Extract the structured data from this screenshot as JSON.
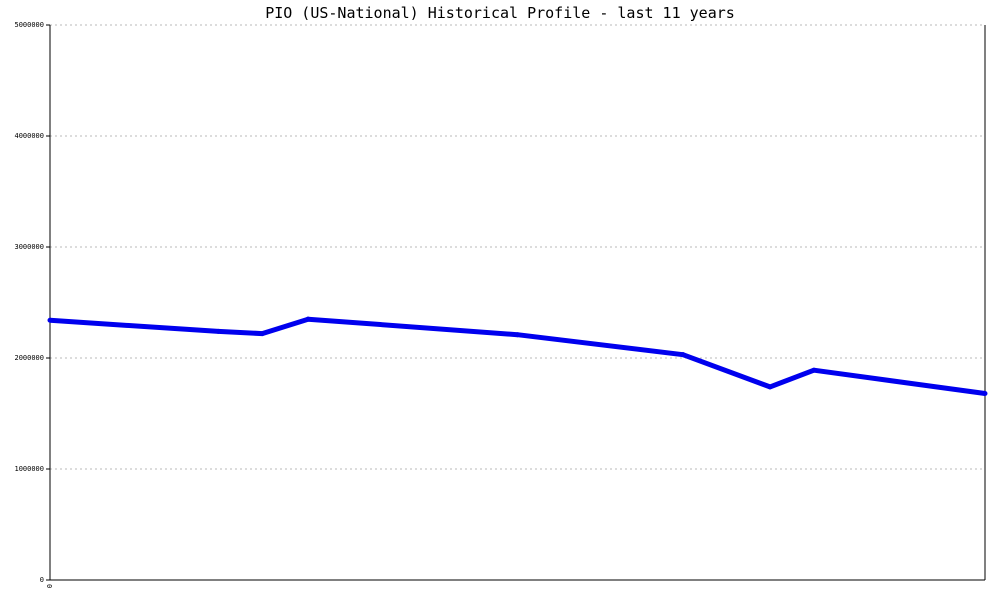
{
  "chart_data": {
    "type": "line",
    "title": "PIO (US-National) Historical Profile - last 11 years",
    "xlabel": "",
    "ylabel": "",
    "x_tick_labels": [
      "0"
    ],
    "y_ticks": [
      0,
      1000000,
      2000000,
      3000000,
      4000000,
      5000000
    ],
    "y_tick_labels": [
      "0",
      "1000000",
      "2000000",
      "3000000",
      "4000000",
      "5000000"
    ],
    "ylim": [
      0,
      5000000
    ],
    "xlim": [
      0,
      1
    ],
    "grid": true,
    "legend": "none",
    "series": [
      {
        "color": "#0000ee",
        "x": [
          0.0,
          0.18,
          0.227,
          0.276,
          0.5,
          0.677,
          0.77,
          0.817,
          1.0
        ],
        "values": [
          2340000,
          2240000,
          2220000,
          2350000,
          2210000,
          2030000,
          1740000,
          1890000,
          1680000
        ]
      }
    ]
  }
}
